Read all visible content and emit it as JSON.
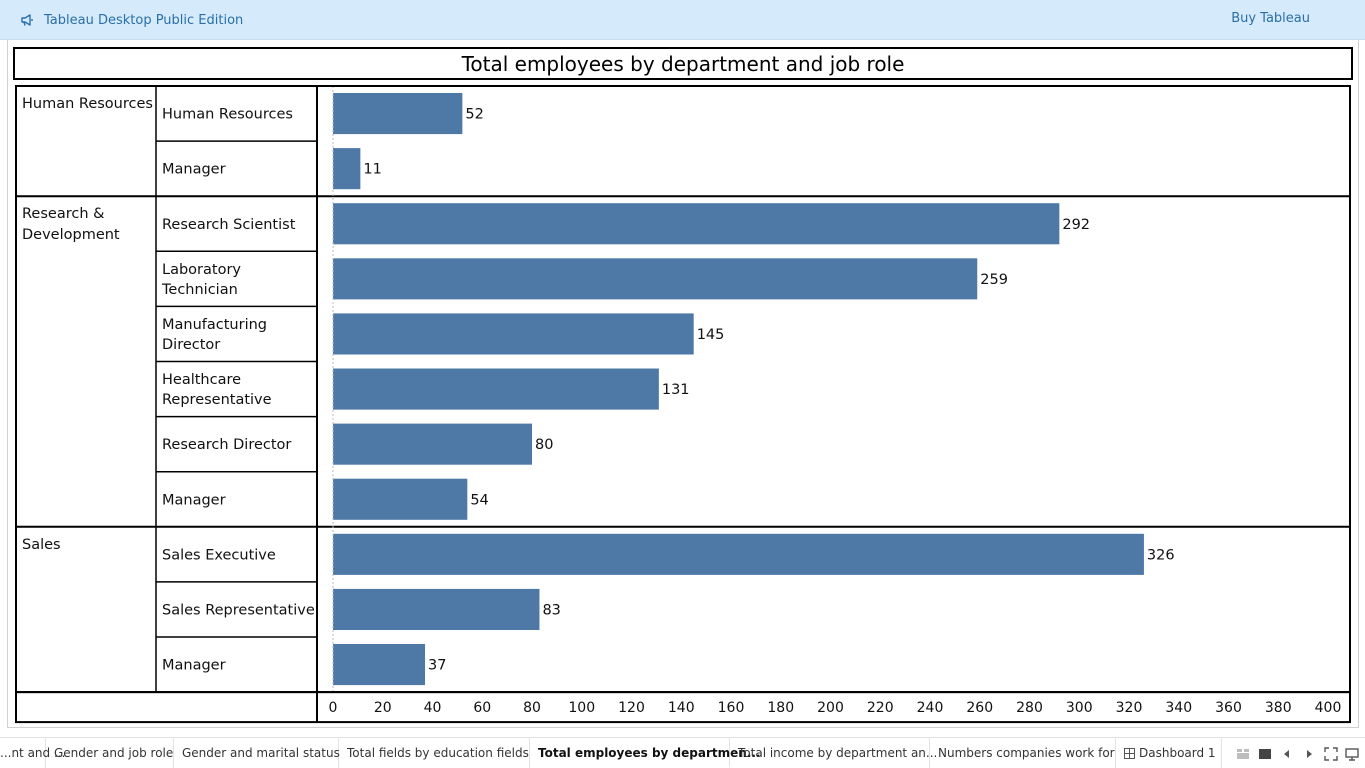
{
  "app": {
    "edition_label": "Tableau Desktop Public Edition",
    "buy_label": "Buy Tableau",
    "icons": {
      "edition": "megaphone-icon"
    },
    "colors": {
      "topbar": "#d5eafa",
      "link": "#2a6fa8"
    }
  },
  "sheet": {
    "title": "Total employees by department and job role"
  },
  "chart_data": {
    "type": "bar",
    "orientation": "horizontal",
    "title": "Total employees by department and job role",
    "bar_color": "#4e79a7",
    "xlim": [
      0,
      400
    ],
    "x_ticks": [
      "0",
      "20",
      "40",
      "60",
      "80",
      "100",
      "120",
      "140",
      "160",
      "180",
      "200",
      "220",
      "240",
      "260",
      "280",
      "300",
      "320",
      "340",
      "360",
      "380",
      "400"
    ],
    "groups": [
      {
        "department": "Human Resources",
        "rows": [
          {
            "role": "Human Resources",
            "value": 52
          },
          {
            "role": "Manager",
            "value": 11
          }
        ]
      },
      {
        "department": "Research & Development",
        "rows": [
          {
            "role": "Research Scientist",
            "value": 292
          },
          {
            "role": "Laboratory Technician",
            "value": 259
          },
          {
            "role": "Manufacturing Director",
            "value": 145
          },
          {
            "role": "Healthcare Representative",
            "value": 131
          },
          {
            "role": "Research Director",
            "value": 80
          },
          {
            "role": "Manager",
            "value": 54
          }
        ]
      },
      {
        "department": "Sales",
        "rows": [
          {
            "role": "Sales Executive",
            "value": 326
          },
          {
            "role": "Sales Representative",
            "value": 83
          },
          {
            "role": "Manager",
            "value": 37
          }
        ]
      }
    ]
  },
  "tabs": {
    "items": [
      {
        "label": "...nt and ..."
      },
      {
        "label": "Gender and job role"
      },
      {
        "label": "Gender and marital status"
      },
      {
        "label": "Total fields by education fields"
      },
      {
        "label": "Total employees by departmen...",
        "active": true
      },
      {
        "label": "Total income by department an..."
      },
      {
        "label": "Numbers companies work for"
      },
      {
        "label": "Dashboard 1",
        "icon": "dashboard-icon"
      }
    ],
    "controls": [
      "show-filmstrip-icon",
      "show-tabs-icon",
      "previous-sheet-icon",
      "next-sheet-icon",
      "fullscreen-icon",
      "presentation-mode-icon"
    ]
  }
}
